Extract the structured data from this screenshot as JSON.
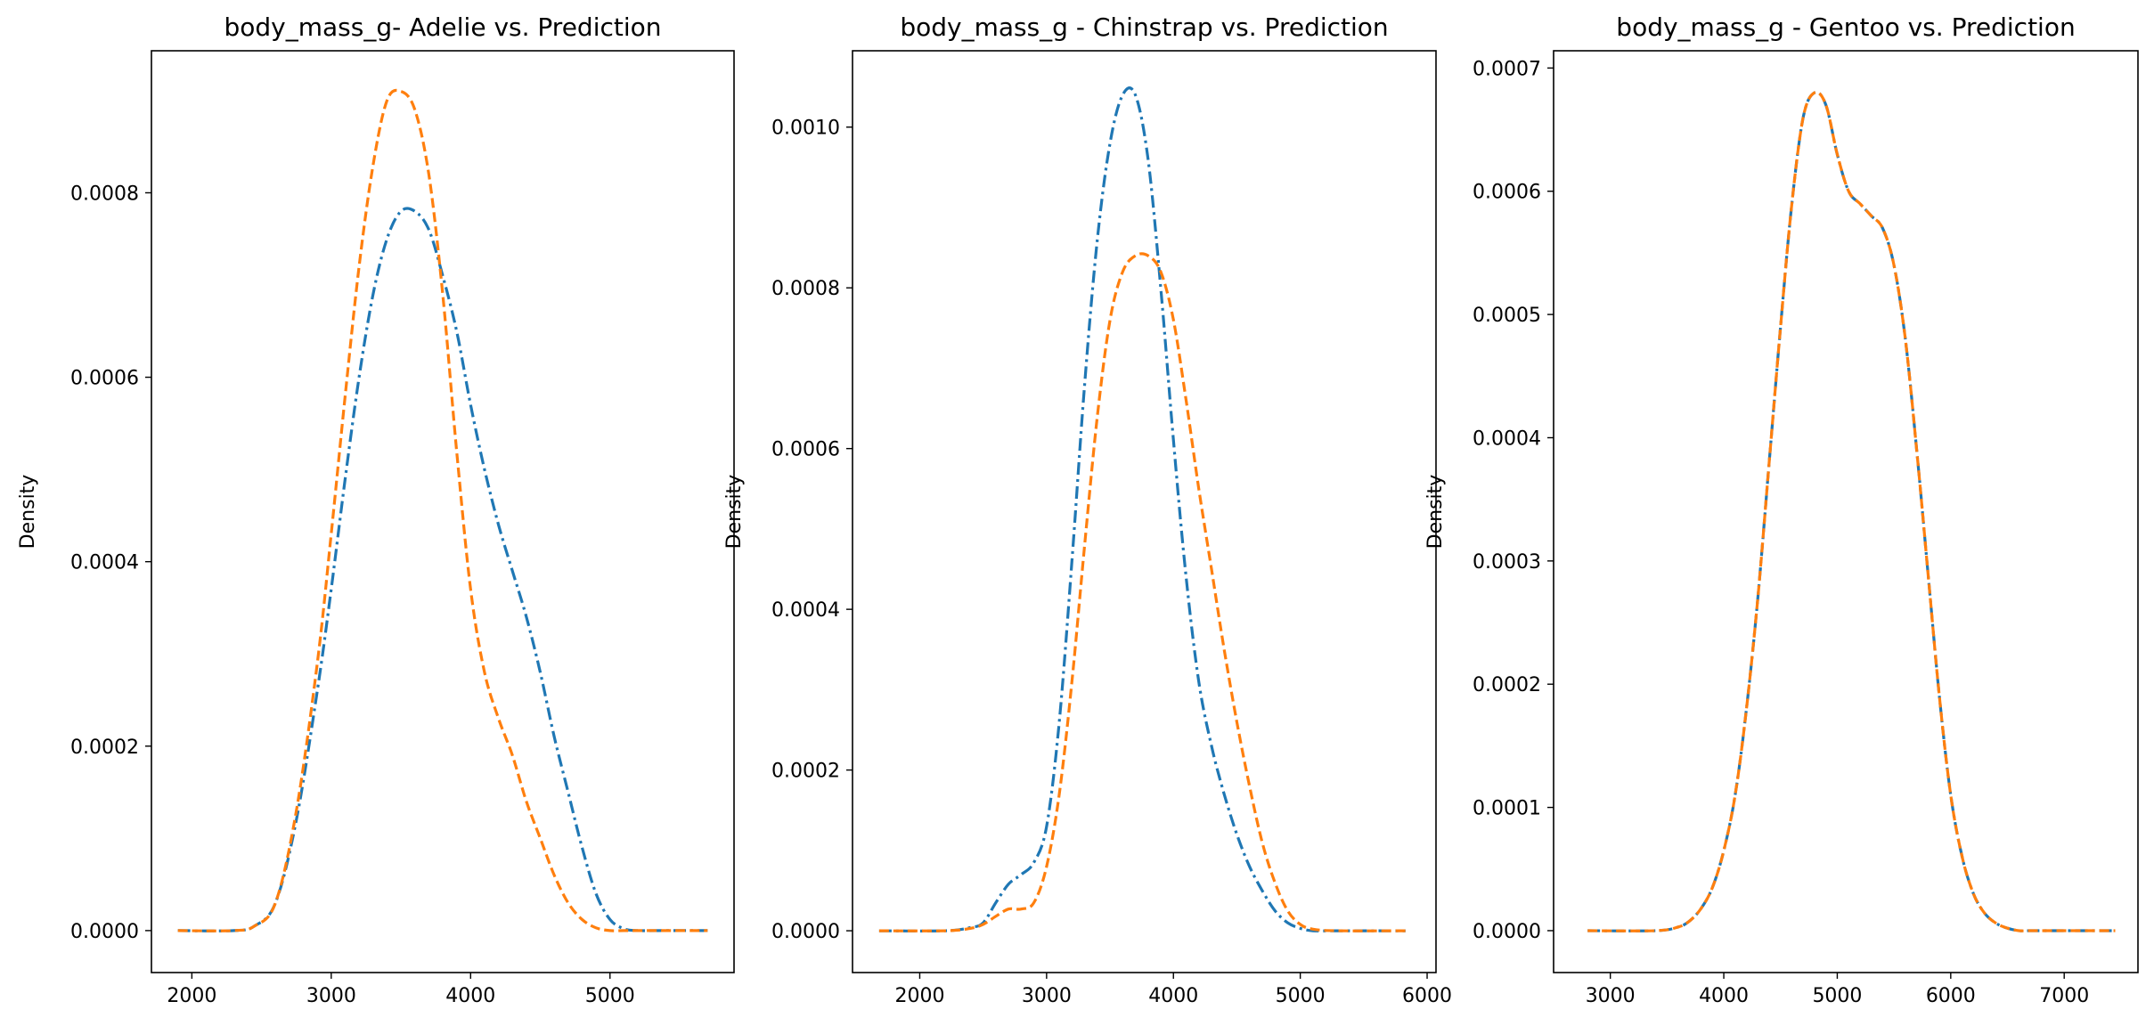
{
  "chart_data": [
    {
      "type": "line",
      "title": "body_mass_g- Adelie vs. Prediction",
      "xlabel": "",
      "ylabel": "Density",
      "xlim": [
        1710,
        5890
      ],
      "ylim": [
        -4.55e-05,
        0.000954
      ],
      "xticks": [
        "2000",
        "3000",
        "4000",
        "5000"
      ],
      "yticks": [
        "0.0000",
        "0.0002",
        "0.0004",
        "0.0006",
        "0.0008"
      ],
      "xtick_values": [
        2000,
        3000,
        4000,
        5000
      ],
      "ytick_values": [
        0,
        0.0002,
        0.0004,
        0.0006,
        0.0008
      ],
      "series": [
        {
          "style": "dashdot",
          "color": "#1f77b4",
          "x": [
            1900,
            2300,
            2450,
            2600,
            2750,
            2900,
            3000,
            3100,
            3200,
            3300,
            3400,
            3500,
            3600,
            3700,
            3800,
            3900,
            4000,
            4100,
            4200,
            4300,
            4400,
            4500,
            4600,
            4700,
            4800,
            4900,
            5000,
            5100,
            5200,
            5400,
            5700
          ],
          "y": [
            0,
            0,
            5e-06,
            3e-05,
            0.00012,
            0.00026,
            0.00037,
            0.00049,
            0.0006,
            0.00069,
            0.00075,
            0.00078,
            0.00078,
            0.00076,
            0.00071,
            0.00065,
            0.00057,
            0.0005,
            0.00044,
            0.00039,
            0.00034,
            0.00028,
            0.00021,
            0.00015,
            9e-05,
            4e-05,
            1.2e-05,
            2e-06,
            0,
            0,
            0
          ]
        },
        {
          "style": "dashed",
          "color": "#ff7f0e",
          "x": [
            1900,
            2300,
            2450,
            2600,
            2750,
            2900,
            3000,
            3100,
            3200,
            3300,
            3400,
            3500,
            3600,
            3700,
            3800,
            3900,
            4000,
            4100,
            4200,
            4300,
            4400,
            4500,
            4600,
            4700,
            4800,
            4900,
            5000,
            5100,
            5200,
            5400,
            5700
          ],
          "y": [
            0,
            0,
            5e-06,
            3e-05,
            0.00013,
            0.00029,
            0.00043,
            0.00058,
            0.00072,
            0.00083,
            0.0009,
            0.00091,
            0.00089,
            0.00082,
            0.00069,
            0.00052,
            0.00037,
            0.00028,
            0.00023,
            0.00019,
            0.00014,
            0.0001,
            6e-05,
            3e-05,
            1.2e-05,
            3e-06,
            0,
            0,
            0,
            0,
            0
          ]
        }
      ]
    },
    {
      "type": "line",
      "title": "body_mass_g - Chinstrap vs. Prediction",
      "xlabel": "",
      "ylabel": "Density",
      "xlim": [
        1470,
        6070
      ],
      "ylim": [
        -5.2e-05,
        0.001095
      ],
      "xticks": [
        "2000",
        "3000",
        "4000",
        "5000",
        "6000"
      ],
      "yticks": [
        "0.0000",
        "0.0002",
        "0.0004",
        "0.0006",
        "0.0008",
        "0.0010"
      ],
      "xtick_values": [
        2000,
        3000,
        4000,
        5000,
        6000
      ],
      "ytick_values": [
        0,
        0.0002,
        0.0004,
        0.0006,
        0.0008,
        0.001
      ],
      "series": [
        {
          "style": "dashdot",
          "color": "#1f77b4",
          "x": [
            1680,
            2200,
            2400,
            2500,
            2600,
            2700,
            2800,
            2900,
            3000,
            3100,
            3200,
            3300,
            3400,
            3500,
            3600,
            3700,
            3800,
            3900,
            4000,
            4100,
            4200,
            4300,
            4400,
            4500,
            4600,
            4700,
            4800,
            4900,
            5000,
            5100,
            5300,
            5830
          ],
          "y": [
            0,
            0,
            4e-06,
            1e-05,
            3.5e-05,
            5.8e-05,
            7e-05,
            8.5e-05,
            0.00013,
            0.00026,
            0.00046,
            0.00068,
            0.00086,
            0.00098,
            0.00104,
            0.00104,
            0.00096,
            0.0008,
            0.00061,
            0.00044,
            0.00031,
            0.00023,
            0.00017,
            0.00012,
            8e-05,
            5e-05,
            2.5e-05,
            1e-05,
            3e-06,
            0,
            0,
            0
          ]
        },
        {
          "style": "dashed",
          "color": "#ff7f0e",
          "x": [
            1680,
            2200,
            2400,
            2500,
            2600,
            2700,
            2800,
            2900,
            3000,
            3100,
            3200,
            3300,
            3400,
            3500,
            3600,
            3700,
            3800,
            3900,
            4000,
            4100,
            4200,
            4300,
            4400,
            4500,
            4600,
            4700,
            4800,
            4900,
            5000,
            5100,
            5300,
            5830
          ],
          "y": [
            0,
            0,
            3e-06,
            8e-06,
            1.8e-05,
            2.7e-05,
            2.7e-05,
            3.5e-05,
            8e-05,
            0.00017,
            0.00031,
            0.00048,
            0.00064,
            0.00076,
            0.00082,
            0.00084,
            0.00084,
            0.00082,
            0.00076,
            0.00066,
            0.00055,
            0.00045,
            0.00035,
            0.00026,
            0.00018,
            0.00011,
            6e-05,
            2.5e-05,
            8e-06,
            2e-06,
            0,
            0
          ]
        }
      ]
    },
    {
      "type": "line",
      "title": "body_mass_g - Gentoo vs. Prediction",
      "xlabel": "",
      "ylabel": "Density",
      "xlim": [
        2500,
        7650
      ],
      "ylim": [
        -3.4e-05,
        0.000714
      ],
      "xticks": [
        "3000",
        "4000",
        "5000",
        "6000",
        "7000"
      ],
      "yticks": [
        "0.0000",
        "0.0001",
        "0.0002",
        "0.0003",
        "0.0004",
        "0.0005",
        "0.0006",
        "0.0007"
      ],
      "xtick_values": [
        3000,
        4000,
        5000,
        6000,
        7000
      ],
      "ytick_values": [
        0,
        0.0001,
        0.0002,
        0.0003,
        0.0004,
        0.0005,
        0.0006,
        0.0007
      ],
      "series": [
        {
          "style": "dashdot",
          "color": "#1f77b4",
          "x": [
            2800,
            3400,
            3600,
            3700,
            3800,
            3900,
            4000,
            4100,
            4200,
            4300,
            4400,
            4500,
            4600,
            4700,
            4800,
            4900,
            5000,
            5100,
            5200,
            5300,
            5400,
            5500,
            5600,
            5700,
            5800,
            5900,
            6000,
            6100,
            6200,
            6300,
            6400,
            6500,
            6600,
            6700,
            6800,
            7000,
            7450
          ],
          "y": [
            0,
            0,
            3e-06,
            8e-06,
            1.8e-05,
            3.5e-05,
            6.5e-05,
            0.00011,
            0.00018,
            0.00027,
            0.00038,
            0.00049,
            0.00059,
            0.00066,
            0.00068,
            0.00067,
            0.00063,
            0.0006,
            0.00059,
            0.00058,
            0.00057,
            0.00054,
            0.00048,
            0.00039,
            0.00029,
            0.00019,
            0.00011,
            6e-05,
            3e-05,
            1.4e-05,
            6e-06,
            2e-06,
            0,
            0,
            0,
            0,
            0
          ]
        },
        {
          "style": "dashed",
          "color": "#ff7f0e",
          "x": [
            2800,
            3400,
            3600,
            3700,
            3800,
            3900,
            4000,
            4100,
            4200,
            4300,
            4400,
            4500,
            4600,
            4700,
            4800,
            4900,
            5000,
            5100,
            5200,
            5300,
            5400,
            5500,
            5600,
            5700,
            5800,
            5900,
            6000,
            6100,
            6200,
            6300,
            6400,
            6500,
            6600,
            6700,
            6800,
            7000,
            7450
          ],
          "y": [
            0,
            0,
            3e-06,
            8e-06,
            1.8e-05,
            3.5e-05,
            6.5e-05,
            0.00011,
            0.00018,
            0.00027,
            0.00038,
            0.00049,
            0.00059,
            0.00066,
            0.00068,
            0.00067,
            0.00063,
            0.0006,
            0.00059,
            0.00058,
            0.00057,
            0.00054,
            0.00048,
            0.00039,
            0.00029,
            0.00019,
            0.00011,
            6e-05,
            3e-05,
            1.4e-05,
            6e-06,
            2e-06,
            0,
            0,
            0,
            0,
            0
          ]
        }
      ]
    }
  ]
}
